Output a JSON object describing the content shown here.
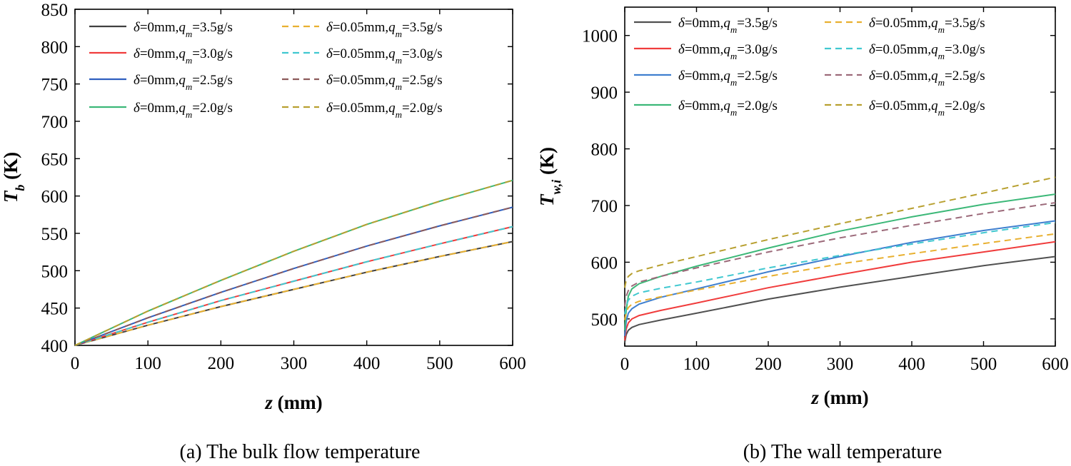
{
  "figure": {
    "captions": [
      "(a) The bulk flow temperature",
      "(b) The wall temperature"
    ]
  },
  "chart_data": [
    {
      "type": "line",
      "panel": "a",
      "caption": "(a) The bulk flow temperature",
      "xlabel": "z (mm)",
      "ylabel": "T_b (K)",
      "ylabel_sym": "T",
      "ylabel_sub": "b",
      "ylabel_unit": " (K)",
      "xlim": [
        0,
        600
      ],
      "ylim": [
        400,
        850
      ],
      "xticks": [
        0,
        100,
        200,
        300,
        400,
        500,
        600
      ],
      "yticks": [
        400,
        450,
        500,
        550,
        600,
        650,
        700,
        750,
        800,
        850
      ],
      "grid": false,
      "legend_position": "top-left",
      "series": [
        {
          "name": "δ=0mm,qm=3.5g/s",
          "delta": "0mm",
          "qm": "3.5g/s",
          "color": "#404040",
          "dash": "solid",
          "x": [
            0,
            100,
            200,
            300,
            400,
            500,
            600
          ],
          "y": [
            400,
            427,
            452,
            475,
            498,
            519,
            539
          ]
        },
        {
          "name": "δ=0mm,qm=3.0g/s",
          "delta": "0mm",
          "qm": "3.0g/s",
          "color": "#f03c3c",
          "dash": "solid",
          "x": [
            0,
            100,
            200,
            300,
            400,
            500,
            600
          ],
          "y": [
            400,
            431,
            460,
            486,
            512,
            536,
            559
          ]
        },
        {
          "name": "δ=0mm,qm=2.5g/s",
          "delta": "0mm",
          "qm": "2.5g/s",
          "color": "#2f5fbf",
          "dash": "solid",
          "x": [
            0,
            100,
            200,
            300,
            400,
            500,
            600
          ],
          "y": [
            400,
            437,
            471,
            503,
            533,
            560,
            585
          ]
        },
        {
          "name": "δ=0mm,qm=2.0g/s",
          "delta": "0mm",
          "qm": "2.0g/s",
          "color": "#3cb878",
          "dash": "solid",
          "x": [
            0,
            100,
            200,
            300,
            400,
            500,
            600
          ],
          "y": [
            400,
            446,
            487,
            526,
            562,
            593,
            621
          ]
        },
        {
          "name": "δ=0.05mm,qm=3.5g/s",
          "delta": "0.05mm",
          "qm": "3.5g/s",
          "color": "#e8b030",
          "dash": "dashed",
          "x": [
            0,
            100,
            200,
            300,
            400,
            500,
            600
          ],
          "y": [
            400,
            427,
            452,
            475,
            498,
            519,
            539
          ]
        },
        {
          "name": "δ=0.05mm,qm=3.0g/s",
          "delta": "0.05mm",
          "qm": "3.0g/s",
          "color": "#40c8d0",
          "dash": "dashed",
          "x": [
            0,
            100,
            200,
            300,
            400,
            500,
            600
          ],
          "y": [
            400,
            431,
            460,
            486,
            512,
            536,
            559
          ]
        },
        {
          "name": "δ=0.05mm,qm=2.5g/s",
          "delta": "0.05mm",
          "qm": "2.5g/s",
          "color": "#8c5a5a",
          "dash": "dashed",
          "x": [
            0,
            100,
            200,
            300,
            400,
            500,
            600
          ],
          "y": [
            400,
            437,
            471,
            503,
            533,
            560,
            585
          ]
        },
        {
          "name": "δ=0.05mm,qm=2.0g/s",
          "delta": "0.05mm",
          "qm": "2.0g/s",
          "color": "#b8a030",
          "dash": "dashed",
          "x": [
            0,
            100,
            200,
            300,
            400,
            500,
            600
          ],
          "y": [
            400,
            446,
            487,
            526,
            562,
            593,
            621
          ]
        }
      ]
    },
    {
      "type": "line",
      "panel": "b",
      "caption": "(b) The wall temperature",
      "xlabel": "z (mm)",
      "ylabel": "T_w,i (K)",
      "ylabel_sym": "T",
      "ylabel_sub": "w,i",
      "ylabel_unit": " (K)",
      "xlim": [
        0,
        600
      ],
      "ylim": [
        452,
        1050
      ],
      "xticks": [
        0,
        100,
        200,
        300,
        400,
        500,
        600
      ],
      "yticks": [
        500,
        600,
        700,
        800,
        900,
        1000
      ],
      "grid": false,
      "legend_position": "top-left",
      "series": [
        {
          "name": "δ=0mm,qm=3.5g/s",
          "delta": "0mm",
          "qm": "3.5g/s",
          "color": "#505050",
          "dash": "solid",
          "x": [
            0,
            2,
            5,
            10,
            20,
            50,
            100,
            200,
            300,
            400,
            500,
            600
          ],
          "y": [
            458,
            472,
            480,
            485,
            490,
            498,
            510,
            535,
            556,
            575,
            594,
            610
          ]
        },
        {
          "name": "δ=0mm,qm=3.0g/s",
          "delta": "0mm",
          "qm": "3.0g/s",
          "color": "#f03c3c",
          "dash": "solid",
          "x": [
            0,
            2,
            5,
            10,
            20,
            50,
            100,
            200,
            300,
            400,
            500,
            600
          ],
          "y": [
            462,
            482,
            493,
            500,
            506,
            515,
            528,
            555,
            578,
            600,
            618,
            636
          ]
        },
        {
          "name": "δ=0mm,qm=2.5g/s",
          "delta": "0mm",
          "qm": "2.5g/s",
          "color": "#3f7fcf",
          "dash": "solid",
          "x": [
            0,
            2,
            5,
            10,
            20,
            50,
            100,
            200,
            300,
            400,
            500,
            600
          ],
          "y": [
            470,
            495,
            510,
            518,
            526,
            538,
            553,
            583,
            610,
            635,
            656,
            673
          ]
        },
        {
          "name": "δ=0mm,qm=2.0g/s",
          "delta": "0mm",
          "qm": "2.0g/s",
          "color": "#3cb878",
          "dash": "solid",
          "x": [
            0,
            2,
            5,
            10,
            20,
            50,
            100,
            200,
            300,
            400,
            500,
            600
          ],
          "y": [
            480,
            515,
            540,
            553,
            562,
            575,
            593,
            625,
            655,
            680,
            702,
            720
          ]
        },
        {
          "name": "δ=0.05mm,qm=3.5g/s",
          "delta": "0.05mm",
          "qm": "3.5g/s",
          "color": "#e8b030",
          "dash": "dashed",
          "x": [
            0,
            2,
            5,
            10,
            20,
            50,
            100,
            200,
            300,
            400,
            500,
            600
          ],
          "y": [
            498,
            512,
            520,
            526,
            531,
            539,
            551,
            575,
            597,
            615,
            633,
            650
          ]
        },
        {
          "name": "δ=0.05mm,qm=3.0g/s",
          "delta": "0.05mm",
          "qm": "3.0g/s",
          "color": "#40c8d0",
          "dash": "dashed",
          "x": [
            0,
            2,
            5,
            10,
            20,
            50,
            100,
            200,
            300,
            400,
            500,
            600
          ],
          "y": [
            508,
            523,
            533,
            540,
            546,
            554,
            565,
            590,
            612,
            632,
            652,
            670
          ]
        },
        {
          "name": "δ=0.05mm,qm=2.5g/s",
          "delta": "0.05mm",
          "qm": "2.5g/s",
          "color": "#9c6a7a",
          "dash": "dashed",
          "x": [
            0,
            2,
            5,
            10,
            20,
            50,
            100,
            200,
            300,
            400,
            500,
            600
          ],
          "y": [
            522,
            540,
            550,
            558,
            565,
            575,
            590,
            618,
            643,
            665,
            686,
            705
          ]
        },
        {
          "name": "δ=0.05mm,qm=2.0g/s",
          "delta": "0.05mm",
          "qm": "2.0g/s",
          "color": "#b8a030",
          "dash": "dashed",
          "x": [
            0,
            2,
            5,
            10,
            20,
            50,
            100,
            200,
            300,
            400,
            500,
            600
          ],
          "y": [
            555,
            568,
            575,
            580,
            585,
            595,
            610,
            640,
            668,
            695,
            722,
            750
          ]
        }
      ]
    }
  ]
}
